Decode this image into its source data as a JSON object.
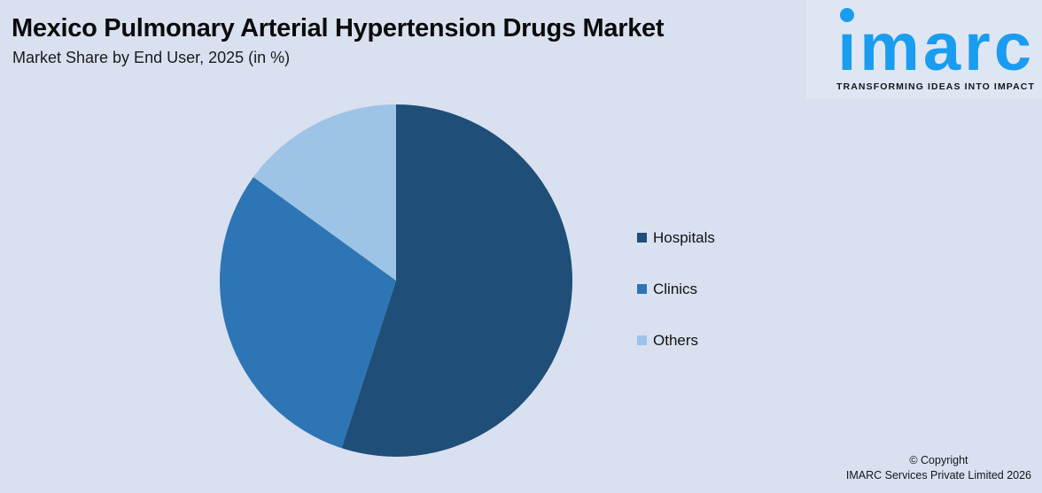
{
  "header": {
    "title": "Mexico Pulmonary Arterial Hypertension Drugs Market",
    "subtitle": "Market Share by End User, 2025 (in %)"
  },
  "logo": {
    "wordmark": "imarc",
    "tagline": "TRANSFORMING IDEAS INTO IMPACT",
    "brand_color": "#1A9CF0",
    "tagline_color": "#15151C"
  },
  "chart_data": {
    "type": "pie",
    "title": "Mexico Pulmonary Arterial Hypertension Drugs Market",
    "subtitle": "Market Share by End User, 2025 (in %)",
    "unit": "%",
    "year": "2025",
    "labels": [
      "Hospitals",
      "Clinics",
      "Others"
    ],
    "values": [
      55,
      30,
      15
    ],
    "colors": [
      "#1F4E79",
      "#2E75B6",
      "#9DC3E6"
    ],
    "start_angle_deg": 0,
    "direction": "clockwise",
    "legend_position": "right",
    "data_labels_shown": false
  },
  "footer": {
    "copyright_line1": "© Copyright",
    "copyright_line2": "IMARC Services Private Limited 2026"
  },
  "colors": {
    "background": "#D9E1F0",
    "logo_panel": "#DFE6F3",
    "title_text": "#0B0B0B"
  }
}
